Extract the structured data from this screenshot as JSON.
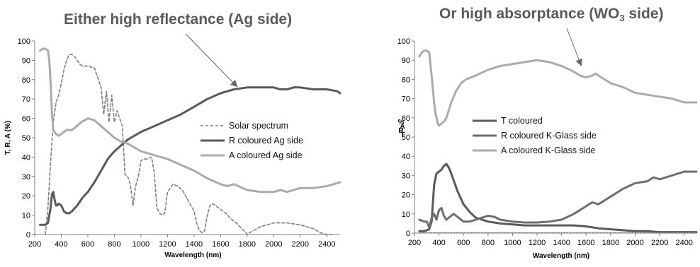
{
  "annotations": {
    "left": "Either high reflectance (Ag side)",
    "right_prefix": "Or high absorptance (WO",
    "right_sub": "3",
    "right_suffix": " side)"
  },
  "colors": {
    "dark": "#5a5a5a",
    "light": "#ababab",
    "dashed": "#7f7f7f",
    "axis": "#808080",
    "arrow": "#666666"
  },
  "chart_data": [
    {
      "type": "line",
      "title": "",
      "xlabel": "Wavelength (nm)",
      "ylabel": "T, R, A (%)",
      "xlim": [
        200,
        2500
      ],
      "ylim": [
        0,
        100
      ],
      "xticks": [
        200,
        400,
        600,
        800,
        1000,
        1200,
        1400,
        1600,
        1800,
        2000,
        2200,
        2400
      ],
      "yticks": [
        0,
        10,
        20,
        30,
        40,
        50,
        60,
        70,
        80,
        90,
        100
      ],
      "grid": false,
      "legend_position": "center-right",
      "series": [
        {
          "name": "Solar spectrum",
          "style": "dashed",
          "color": "#7f7f7f",
          "x": [
            280,
            300,
            320,
            340,
            360,
            380,
            400,
            420,
            440,
            460,
            480,
            500,
            520,
            540,
            560,
            600,
            650,
            680,
            700,
            720,
            740,
            760,
            780,
            800,
            820,
            840,
            860,
            880,
            900,
            920,
            940,
            960,
            980,
            1000,
            1020,
            1050,
            1080,
            1100,
            1120,
            1140,
            1160,
            1180,
            1200,
            1240,
            1280,
            1320,
            1360,
            1400,
            1420,
            1440,
            1460,
            1480,
            1500,
            1520,
            1540,
            1560,
            1580,
            1600,
            1640,
            1680,
            1720,
            1760,
            1790,
            1800,
            1820,
            1900,
            2000,
            2100,
            2200,
            2300,
            2350,
            2400,
            2450
          ],
          "y": [
            0,
            14,
            38,
            58,
            68,
            72,
            78,
            85,
            90,
            93,
            93,
            92,
            90,
            88,
            87,
            87,
            86,
            80,
            76,
            62,
            74,
            58,
            72,
            58,
            64,
            60,
            56,
            31,
            30,
            26,
            15,
            25,
            30,
            38,
            39,
            39,
            40,
            32,
            14,
            11,
            10,
            11,
            22,
            26,
            25,
            22,
            17,
            12,
            6,
            2,
            1,
            2,
            10,
            15,
            16,
            15,
            14,
            13,
            11,
            8,
            6,
            3,
            1,
            0,
            1,
            4,
            6,
            6,
            5,
            3,
            1,
            0,
            0
          ]
        },
        {
          "name": "R coloured Ag side",
          "style": "solid",
          "color": "#5a5a5a",
          "x": [
            240,
            280,
            300,
            320,
            330,
            340,
            350,
            360,
            370,
            380,
            400,
            420,
            440,
            460,
            480,
            520,
            560,
            600,
            650,
            700,
            750,
            800,
            850,
            900,
            950,
            1000,
            1100,
            1200,
            1300,
            1400,
            1500,
            1600,
            1700,
            1800,
            1900,
            2000,
            2050,
            2100,
            2150,
            2200,
            2300,
            2400,
            2480,
            2500
          ],
          "y": [
            5,
            5,
            6,
            14,
            21,
            22,
            18,
            15,
            15,
            16,
            15,
            12,
            11,
            11,
            12,
            15,
            19,
            22,
            27,
            33,
            39,
            43,
            46,
            49,
            51,
            53,
            56,
            59,
            62,
            66,
            70,
            73,
            75,
            76,
            76,
            76,
            75,
            75,
            76,
            76,
            75,
            75,
            74,
            73
          ]
        },
        {
          "name": "A coloured Ag side",
          "style": "solid",
          "color": "#ababab",
          "x": [
            240,
            260,
            280,
            300,
            310,
            320,
            330,
            340,
            350,
            360,
            380,
            400,
            420,
            440,
            460,
            480,
            500,
            550,
            600,
            650,
            700,
            750,
            800,
            850,
            900,
            1000,
            1100,
            1200,
            1300,
            1400,
            1500,
            1600,
            1650,
            1700,
            1800,
            1900,
            2000,
            2050,
            2100,
            2200,
            2300,
            2400,
            2500
          ],
          "y": [
            95,
            96,
            96,
            95,
            90,
            78,
            62,
            54,
            53,
            52,
            51,
            52,
            53,
            54,
            54,
            54,
            55,
            58,
            60,
            59,
            56,
            53,
            50,
            48,
            47,
            43,
            41,
            39,
            36,
            33,
            29,
            26,
            25,
            26,
            23,
            22,
            22,
            23,
            22,
            24,
            24,
            25,
            27
          ]
        }
      ]
    },
    {
      "type": "line",
      "title": "",
      "xlabel": "Wavelength (nm)",
      "ylabel": "T, R, A (%)",
      "xlim": [
        200,
        2500
      ],
      "ylim": [
        0,
        100
      ],
      "xticks": [
        200,
        400,
        600,
        800,
        1000,
        1200,
        1400,
        1600,
        1800,
        2000,
        2200,
        2400
      ],
      "yticks": [
        0,
        10,
        20,
        30,
        40,
        50,
        60,
        70,
        80,
        90,
        100
      ],
      "grid": false,
      "legend_position": "center-right",
      "series": [
        {
          "name": "T coloured",
          "style": "solid",
          "color": "#5a5a5a",
          "x": [
            240,
            280,
            320,
            340,
            360,
            380,
            400,
            420,
            440,
            460,
            480,
            500,
            550,
            600,
            650,
            700,
            800,
            900,
            1000,
            1100,
            1200,
            1300,
            1400,
            1500,
            1600,
            1650,
            1700,
            1800,
            1900,
            2000,
            2100,
            2200,
            2300,
            2400,
            2500
          ],
          "y": [
            1,
            1,
            2,
            6,
            25,
            31,
            32,
            33,
            35,
            36,
            34,
            31,
            22,
            15,
            11,
            8,
            6,
            5,
            4.5,
            4,
            4,
            4,
            4,
            4,
            3.5,
            3,
            2.5,
            2,
            1.5,
            1,
            1,
            0.5,
            0.5,
            0.5,
            0.5
          ]
        },
        {
          "name": "R coloured K-Glass side",
          "style": "solid",
          "color": "#6e6e6e",
          "x": [
            240,
            280,
            300,
            320,
            340,
            360,
            380,
            400,
            420,
            440,
            460,
            480,
            500,
            520,
            560,
            600,
            650,
            700,
            750,
            800,
            850,
            900,
            1000,
            1100,
            1200,
            1300,
            1400,
            1500,
            1600,
            1650,
            1700,
            1800,
            1900,
            2000,
            2100,
            2150,
            2200,
            2300,
            2400,
            2500
          ],
          "y": [
            7,
            6,
            6,
            3,
            8,
            10,
            7,
            12,
            13,
            9,
            7,
            8,
            9,
            10,
            8,
            6,
            6,
            7,
            8,
            9,
            8.5,
            7,
            6,
            5.5,
            5.5,
            6,
            7,
            10,
            14,
            16,
            15,
            19,
            23,
            26,
            27,
            29,
            28,
            30,
            32,
            32
          ]
        },
        {
          "name": "A coloured K-Glass side",
          "style": "solid",
          "color": "#ababab",
          "x": [
            240,
            260,
            280,
            300,
            320,
            330,
            340,
            350,
            360,
            370,
            380,
            390,
            400,
            420,
            440,
            460,
            480,
            500,
            540,
            580,
            620,
            660,
            700,
            800,
            900,
            1000,
            1100,
            1200,
            1300,
            1400,
            1500,
            1550,
            1600,
            1650,
            1680,
            1700,
            1800,
            1900,
            2000,
            2100,
            2200,
            2300,
            2400,
            2500
          ],
          "y": [
            92,
            94,
            95,
            95,
            94,
            88,
            82,
            75,
            68,
            63,
            60,
            57,
            56,
            57,
            58,
            60,
            64,
            68,
            74,
            78,
            80,
            81,
            82,
            85,
            87,
            88,
            89,
            90,
            89,
            87,
            84,
            82,
            81,
            82,
            83,
            82,
            78,
            76,
            73,
            72,
            71,
            70,
            68,
            68
          ]
        },
        {
          "name": "",
          "style": "dotted",
          "color": "#8a8a8a",
          "x": [
            240,
            500,
            1000,
            1500,
            2000,
            2500
          ],
          "y": [
            0.3,
            0.3,
            0.3,
            0.3,
            0.3,
            0.3
          ]
        }
      ]
    }
  ]
}
